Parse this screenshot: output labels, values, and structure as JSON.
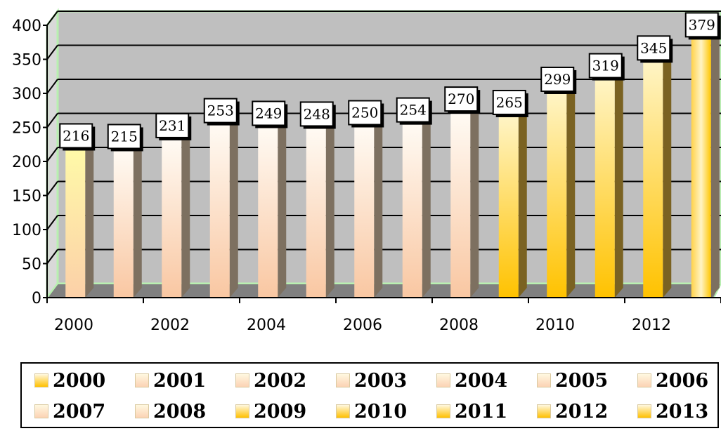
{
  "chart_data": {
    "type": "bar",
    "title": "",
    "xlabel": "",
    "ylabel": "",
    "categories": [
      "2000",
      "2001",
      "2002",
      "2003",
      "2004",
      "2005",
      "2006",
      "2007",
      "2008",
      "2009",
      "2010",
      "2011",
      "2012",
      "2013"
    ],
    "values": [
      216,
      215,
      231,
      253,
      249,
      248,
      250,
      254,
      270,
      265,
      299,
      319,
      345,
      379
    ],
    "ylim": [
      0,
      400
    ],
    "yticks": [
      "0",
      "50",
      "100",
      "150",
      "200",
      "250",
      "300",
      "350",
      "400"
    ],
    "xtick_labels": [
      "2000",
      "2002",
      "2004",
      "2006",
      "2008",
      "2010",
      "2012"
    ],
    "grid": true,
    "legend_position": "bottom",
    "colors": {
      "plot_background": "#bfbfbf",
      "floor": "#808080",
      "wall_edge": "#b8f0b0",
      "bar_peach": "#fcd3b4",
      "bar_gold": "#ffc000",
      "bar_first": "#ffe680"
    }
  }
}
